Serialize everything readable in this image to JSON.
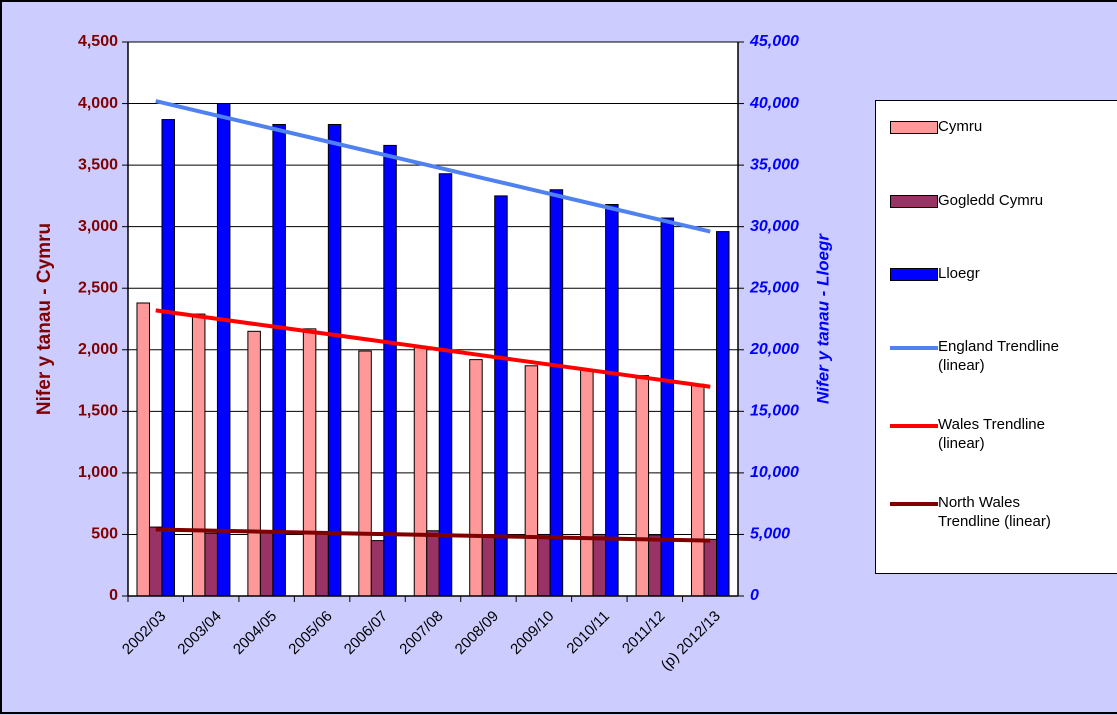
{
  "chart_data": {
    "type": "bar",
    "categories": [
      "2002/03",
      "2003/04",
      "2004/05",
      "2005/06",
      "2006/07",
      "2007/08",
      "2008/09",
      "2009/10",
      "2010/11",
      "2011/12",
      "(p) 2012/13"
    ],
    "series": [
      {
        "name": "Cymru",
        "color": "#ff9999",
        "kind": "bar",
        "axis": "y",
        "values": [
          2380,
          2290,
          2150,
          2170,
          1990,
          2020,
          1920,
          1870,
          1840,
          1790,
          1720
        ]
      },
      {
        "name": "Gogledd Cymru",
        "color": "#993366",
        "kind": "bar",
        "axis": "y",
        "values": [
          560,
          510,
          530,
          510,
          450,
          530,
          490,
          500,
          500,
          490,
          460
        ]
      },
      {
        "name": "Lloegr",
        "color": "#0000ff",
        "kind": "bar",
        "axis": "y2",
        "values": [
          38700,
          40000,
          38300,
          38300,
          36600,
          34300,
          32500,
          33000,
          31800,
          30700,
          29600
        ]
      },
      {
        "name": "England Trendline (linear)",
        "color": "#4f81f0",
        "kind": "line",
        "axis": "y2",
        "values": [
          40200,
          39140,
          38080,
          37020,
          35960,
          34900,
          33840,
          32780,
          31720,
          30660,
          29600
        ]
      },
      {
        "name": "Wales Trendline (linear)",
        "color": "#ff0000",
        "kind": "line",
        "axis": "y",
        "values": [
          2320,
          2258,
          2196,
          2134,
          2072,
          2010,
          1948,
          1886,
          1824,
          1762,
          1700
        ]
      },
      {
        "name": "North Wales Trendline (linear)",
        "color": "#800000",
        "kind": "line",
        "axis": "y",
        "values": [
          540,
          531,
          522,
          513,
          504,
          495,
          486,
          477,
          468,
          459,
          450
        ]
      }
    ],
    "ylabel": "Nifer y tanau - Cymru",
    "y2label": "Nifer y tanau - Lloegr",
    "ylim": [
      0,
      4500
    ],
    "yticks": [
      0,
      500,
      {
        "value": 1000,
        "label": "1,000"
      },
      {
        "value": 1500,
        "label": "1,500"
      },
      {
        "value": 2000,
        "label": "2,000"
      },
      {
        "value": 2500,
        "label": "2,500"
      },
      {
        "value": 3000,
        "label": "3,000"
      },
      {
        "value": 3500,
        "label": "3,500"
      },
      {
        "value": 4000,
        "label": "4,000"
      },
      {
        "value": 4500,
        "label": "4,500"
      }
    ],
    "y2lim": [
      0,
      45000
    ],
    "y2ticks": [
      0,
      {
        "value": 5000,
        "label": "5,000"
      },
      {
        "value": 10000,
        "label": "10,000"
      },
      {
        "value": 15000,
        "label": "15,000"
      },
      {
        "value": 20000,
        "label": "20,000"
      },
      {
        "value": 25000,
        "label": "25,000"
      },
      {
        "value": 30000,
        "label": "30,000"
      },
      {
        "value": 35000,
        "label": "35,000"
      },
      {
        "value": 40000,
        "label": "40,000"
      },
      {
        "value": 45000,
        "label": "45,000"
      }
    ],
    "grid": true
  }
}
